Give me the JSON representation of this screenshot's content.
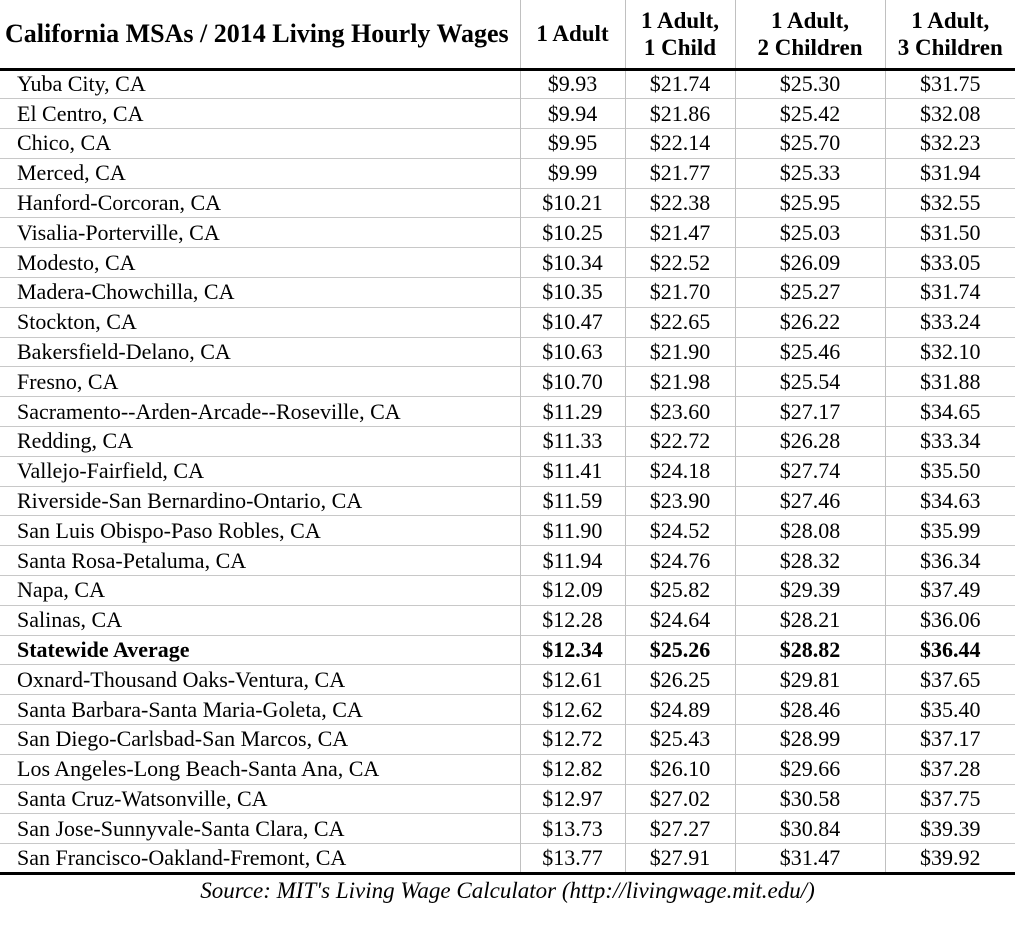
{
  "table": {
    "title": "California MSAs / 2014 Living Hourly Wages",
    "columns": [
      "1 Adult",
      "1 Adult,\n1 Child",
      "1 Adult,\n2 Children",
      "1 Adult,\n3 Children"
    ],
    "rows": [
      {
        "area": "Yuba City, CA",
        "values": [
          "$9.93",
          "$21.74",
          "$25.30",
          "$31.75"
        ],
        "emphasis": false
      },
      {
        "area": "El Centro, CA",
        "values": [
          "$9.94",
          "$21.86",
          "$25.42",
          "$32.08"
        ],
        "emphasis": false
      },
      {
        "area": "Chico, CA",
        "values": [
          "$9.95",
          "$22.14",
          "$25.70",
          "$32.23"
        ],
        "emphasis": false
      },
      {
        "area": "Merced, CA",
        "values": [
          "$9.99",
          "$21.77",
          "$25.33",
          "$31.94"
        ],
        "emphasis": false
      },
      {
        "area": "Hanford-Corcoran, CA",
        "values": [
          "$10.21",
          "$22.38",
          "$25.95",
          "$32.55"
        ],
        "emphasis": false
      },
      {
        "area": "Visalia-Porterville, CA",
        "values": [
          "$10.25",
          "$21.47",
          "$25.03",
          "$31.50"
        ],
        "emphasis": false
      },
      {
        "area": "Modesto, CA",
        "values": [
          "$10.34",
          "$22.52",
          "$26.09",
          "$33.05"
        ],
        "emphasis": false
      },
      {
        "area": "Madera-Chowchilla, CA",
        "values": [
          "$10.35",
          "$21.70",
          "$25.27",
          "$31.74"
        ],
        "emphasis": false
      },
      {
        "area": "Stockton, CA",
        "values": [
          "$10.47",
          "$22.65",
          "$26.22",
          "$33.24"
        ],
        "emphasis": false
      },
      {
        "area": "Bakersfield-Delano, CA",
        "values": [
          "$10.63",
          "$21.90",
          "$25.46",
          "$32.10"
        ],
        "emphasis": false
      },
      {
        "area": "Fresno, CA",
        "values": [
          "$10.70",
          "$21.98",
          "$25.54",
          "$31.88"
        ],
        "emphasis": false
      },
      {
        "area": "Sacramento--Arden-Arcade--Roseville, CA",
        "values": [
          "$11.29",
          "$23.60",
          "$27.17",
          "$34.65"
        ],
        "emphasis": false
      },
      {
        "area": "Redding, CA",
        "values": [
          "$11.33",
          "$22.72",
          "$26.28",
          "$33.34"
        ],
        "emphasis": false
      },
      {
        "area": "Vallejo-Fairfield, CA",
        "values": [
          "$11.41",
          "$24.18",
          "$27.74",
          "$35.50"
        ],
        "emphasis": false
      },
      {
        "area": "Riverside-San Bernardino-Ontario, CA",
        "values": [
          "$11.59",
          "$23.90",
          "$27.46",
          "$34.63"
        ],
        "emphasis": false
      },
      {
        "area": "San Luis Obispo-Paso Robles, CA",
        "values": [
          "$11.90",
          "$24.52",
          "$28.08",
          "$35.99"
        ],
        "emphasis": false
      },
      {
        "area": "Santa Rosa-Petaluma, CA",
        "values": [
          "$11.94",
          "$24.76",
          "$28.32",
          "$36.34"
        ],
        "emphasis": false
      },
      {
        "area": "Napa, CA",
        "values": [
          "$12.09",
          "$25.82",
          "$29.39",
          "$37.49"
        ],
        "emphasis": false
      },
      {
        "area": "Salinas, CA",
        "values": [
          "$12.28",
          "$24.64",
          "$28.21",
          "$36.06"
        ],
        "emphasis": false
      },
      {
        "area": "Statewide Average",
        "values": [
          "$12.34",
          "$25.26",
          "$28.82",
          "$36.44"
        ],
        "emphasis": true
      },
      {
        "area": "Oxnard-Thousand Oaks-Ventura, CA",
        "values": [
          "$12.61",
          "$26.25",
          "$29.81",
          "$37.65"
        ],
        "emphasis": false
      },
      {
        "area": "Santa Barbara-Santa Maria-Goleta, CA",
        "values": [
          "$12.62",
          "$24.89",
          "$28.46",
          "$35.40"
        ],
        "emphasis": false
      },
      {
        "area": "San Diego-Carlsbad-San Marcos, CA",
        "values": [
          "$12.72",
          "$25.43",
          "$28.99",
          "$37.17"
        ],
        "emphasis": false
      },
      {
        "area": "Los Angeles-Long Beach-Santa Ana, CA",
        "values": [
          "$12.82",
          "$26.10",
          "$29.66",
          "$37.28"
        ],
        "emphasis": false
      },
      {
        "area": "Santa Cruz-Watsonville, CA",
        "values": [
          "$12.97",
          "$27.02",
          "$30.58",
          "$37.75"
        ],
        "emphasis": false
      },
      {
        "area": "San Jose-Sunnyvale-Santa Clara, CA",
        "values": [
          "$13.73",
          "$27.27",
          "$30.84",
          "$39.39"
        ],
        "emphasis": false
      },
      {
        "area": "San Francisco-Oakland-Fremont, CA",
        "values": [
          "$13.77",
          "$27.91",
          "$31.47",
          "$39.92"
        ],
        "emphasis": false
      }
    ],
    "source": "Source: MIT's Living Wage Calculator (http://livingwage.mit.edu/)"
  },
  "colors": {
    "grid_line": "#c0c0c0",
    "row_line": "#c8c8c8",
    "heavy_border": "#000000",
    "text": "#000000",
    "background": "#ffffff"
  }
}
